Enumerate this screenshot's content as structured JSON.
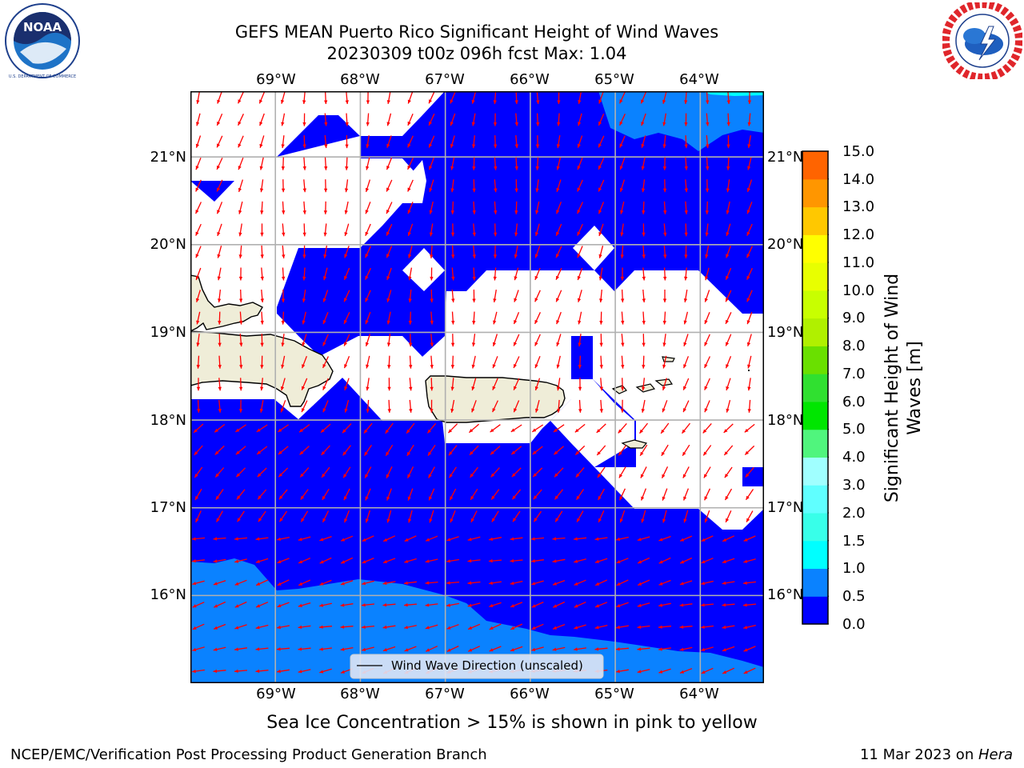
{
  "header": {
    "title_line1": "GEFS MEAN Puerto Rico Significant Height of Wind Waves",
    "title_line2": "20230309 t00z 096h fcst   Max: 1.04"
  },
  "logos": {
    "left": {
      "name": "noaa-logo",
      "text": "NOAA",
      "ring_text": "NATIONAL OCEANIC AND ATMOSPHERIC ADMINISTRATION · U.S. DEPARTMENT OF COMMERCE"
    },
    "right": {
      "name": "nws-logo",
      "ring_text": "NATIONAL WEATHER SERVICE"
    }
  },
  "map": {
    "lon_labels": [
      "69°W",
      "68°W",
      "67°W",
      "66°W",
      "65°W",
      "64°W"
    ],
    "lat_labels": [
      "21°N",
      "20°N",
      "19°N",
      "18°N",
      "17°N",
      "16°N"
    ],
    "extent": {
      "lon": [
        -70.0,
        -63.25
      ],
      "lat": [
        15.0,
        21.75
      ]
    },
    "legend_text": "Wind Wave Direction (unscaled)",
    "arrow_color": "#ff0000",
    "land_color": "#efedd8",
    "sea_bins_colors": {
      "0.0-0.5": "#0000ff",
      "0.5-1.0": "#0a82ff"
    }
  },
  "colorbar": {
    "ticks": [
      "15.0",
      "14.0",
      "13.0",
      "12.0",
      "11.0",
      "10.0",
      "9.0",
      "8.0",
      "7.0",
      "6.0",
      "5.0",
      "4.0",
      "3.0",
      "2.0",
      "1.5",
      "1.0",
      "0.5",
      "0.0"
    ],
    "colors_bottom_to_top": [
      "#0000ff",
      "#0a82ff",
      "#00ffff",
      "#38ffe9",
      "#60ffff",
      "#a0ffff",
      "#50f57d",
      "#00e600",
      "#30e030",
      "#6ae000",
      "#b0f000",
      "#c8ff00",
      "#e8ff00",
      "#ffff00",
      "#ffc800",
      "#ff9600",
      "#ff6400",
      "#ff3200",
      "#ff0000",
      "#ff0000"
    ],
    "label": "Significant Height of Wind\nWaves [m]",
    "label_line1": "Significant Height of Wind",
    "label_line2": "Waves [m]"
  },
  "notes": {
    "ice": "Sea Ice Concentration > 15% is shown in pink to yellow"
  },
  "footer": {
    "left": "NCEP/EMC/Verification Post Processing Product Generation Branch",
    "date": "11 Mar 2023 on ",
    "host": "Hera"
  }
}
